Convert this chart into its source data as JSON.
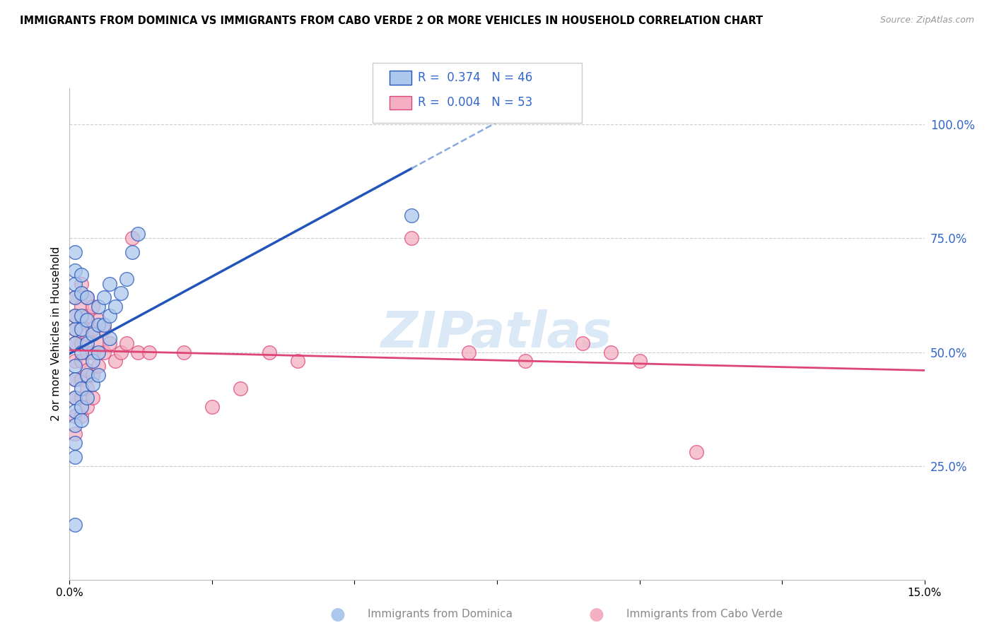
{
  "title": "IMMIGRANTS FROM DOMINICA VS IMMIGRANTS FROM CABO VERDE 2 OR MORE VEHICLES IN HOUSEHOLD CORRELATION CHART",
  "source": "Source: ZipAtlas.com",
  "ylabel": "2 or more Vehicles in Household",
  "xlim": [
    0.0,
    0.15
  ],
  "ylim": [
    0.0,
    1.08
  ],
  "yticks": [
    0.25,
    0.5,
    0.75,
    1.0
  ],
  "ytick_labels": [
    "25.0%",
    "50.0%",
    "75.0%",
    "100.0%"
  ],
  "dominica_R": 0.374,
  "dominica_N": 46,
  "caboverde_R": 0.004,
  "caboverde_N": 53,
  "dominica_color": "#adc8ed",
  "caboverde_color": "#f4afc2",
  "trend_dominica_color": "#2255bb",
  "trend_caboverde_color": "#dd4477",
  "dashed_color": "#88aadd",
  "watermark": "ZIPatlas",
  "legend_text_color": "#3366cc",
  "ytick_color": "#3366cc",
  "dominica_points": [
    [
      0.001,
      0.47
    ],
    [
      0.001,
      0.52
    ],
    [
      0.001,
      0.55
    ],
    [
      0.001,
      0.58
    ],
    [
      0.001,
      0.62
    ],
    [
      0.001,
      0.65
    ],
    [
      0.001,
      0.68
    ],
    [
      0.001,
      0.72
    ],
    [
      0.001,
      0.44
    ],
    [
      0.001,
      0.4
    ],
    [
      0.001,
      0.37
    ],
    [
      0.001,
      0.34
    ],
    [
      0.001,
      0.3
    ],
    [
      0.001,
      0.27
    ],
    [
      0.002,
      0.5
    ],
    [
      0.002,
      0.55
    ],
    [
      0.002,
      0.58
    ],
    [
      0.002,
      0.63
    ],
    [
      0.002,
      0.67
    ],
    [
      0.002,
      0.42
    ],
    [
      0.002,
      0.38
    ],
    [
      0.002,
      0.35
    ],
    [
      0.003,
      0.52
    ],
    [
      0.003,
      0.57
    ],
    [
      0.003,
      0.62
    ],
    [
      0.003,
      0.45
    ],
    [
      0.003,
      0.4
    ],
    [
      0.004,
      0.54
    ],
    [
      0.004,
      0.48
    ],
    [
      0.004,
      0.43
    ],
    [
      0.005,
      0.6
    ],
    [
      0.005,
      0.56
    ],
    [
      0.005,
      0.5
    ],
    [
      0.005,
      0.45
    ],
    [
      0.006,
      0.62
    ],
    [
      0.006,
      0.56
    ],
    [
      0.007,
      0.65
    ],
    [
      0.007,
      0.58
    ],
    [
      0.007,
      0.53
    ],
    [
      0.008,
      0.6
    ],
    [
      0.009,
      0.63
    ],
    [
      0.01,
      0.66
    ],
    [
      0.011,
      0.72
    ],
    [
      0.012,
      0.76
    ],
    [
      0.001,
      0.12
    ],
    [
      0.06,
      0.8
    ]
  ],
  "caboverde_points": [
    [
      0.001,
      0.62
    ],
    [
      0.001,
      0.58
    ],
    [
      0.001,
      0.55
    ],
    [
      0.001,
      0.52
    ],
    [
      0.001,
      0.48
    ],
    [
      0.001,
      0.44
    ],
    [
      0.001,
      0.4
    ],
    [
      0.001,
      0.36
    ],
    [
      0.001,
      0.32
    ],
    [
      0.002,
      0.65
    ],
    [
      0.002,
      0.6
    ],
    [
      0.002,
      0.56
    ],
    [
      0.002,
      0.52
    ],
    [
      0.002,
      0.48
    ],
    [
      0.002,
      0.44
    ],
    [
      0.002,
      0.4
    ],
    [
      0.002,
      0.36
    ],
    [
      0.003,
      0.62
    ],
    [
      0.003,
      0.58
    ],
    [
      0.003,
      0.54
    ],
    [
      0.003,
      0.5
    ],
    [
      0.003,
      0.46
    ],
    [
      0.003,
      0.42
    ],
    [
      0.003,
      0.38
    ],
    [
      0.004,
      0.6
    ],
    [
      0.004,
      0.55
    ],
    [
      0.004,
      0.5
    ],
    [
      0.004,
      0.45
    ],
    [
      0.004,
      0.4
    ],
    [
      0.005,
      0.57
    ],
    [
      0.005,
      0.52
    ],
    [
      0.005,
      0.47
    ],
    [
      0.006,
      0.55
    ],
    [
      0.006,
      0.5
    ],
    [
      0.007,
      0.52
    ],
    [
      0.008,
      0.48
    ],
    [
      0.009,
      0.5
    ],
    [
      0.01,
      0.52
    ],
    [
      0.011,
      0.75
    ],
    [
      0.012,
      0.5
    ],
    [
      0.014,
      0.5
    ],
    [
      0.02,
      0.5
    ],
    [
      0.025,
      0.38
    ],
    [
      0.03,
      0.42
    ],
    [
      0.035,
      0.5
    ],
    [
      0.04,
      0.48
    ],
    [
      0.06,
      0.75
    ],
    [
      0.07,
      0.5
    ],
    [
      0.08,
      0.48
    ],
    [
      0.09,
      0.52
    ],
    [
      0.095,
      0.5
    ],
    [
      0.1,
      0.48
    ],
    [
      0.11,
      0.28
    ]
  ]
}
